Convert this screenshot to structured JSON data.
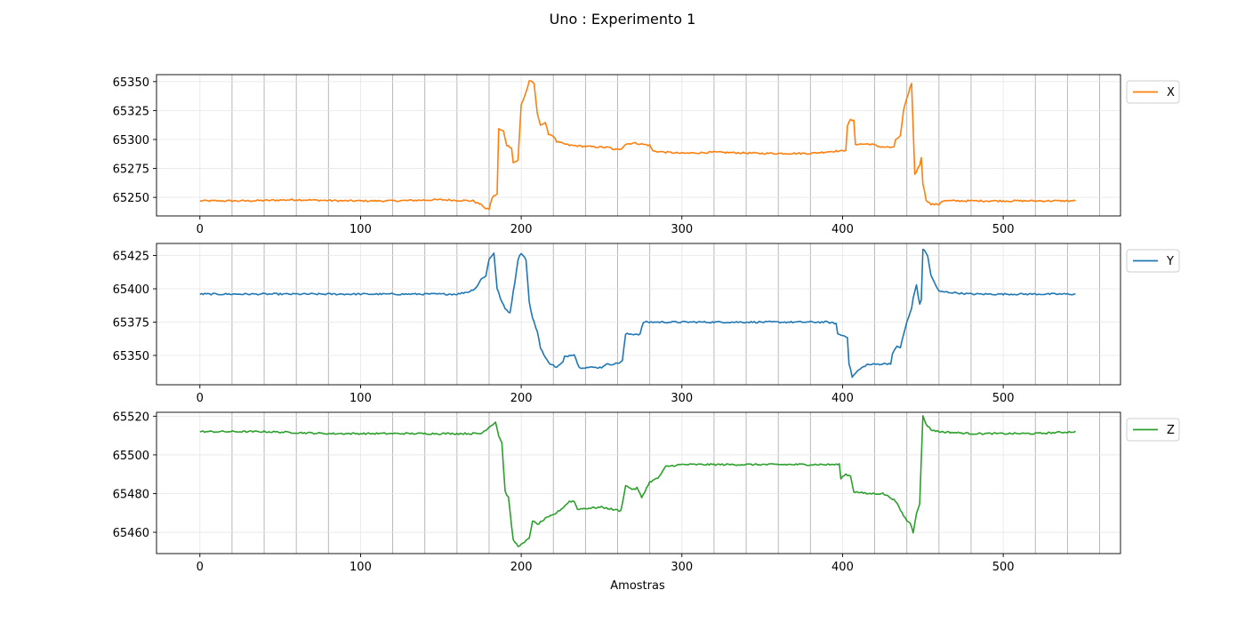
{
  "figure": {
    "title": "Uno : Experimento 1",
    "xlabel": "Amostras"
  },
  "chart_data": [
    {
      "type": "line",
      "series": [
        {
          "name": "X",
          "color": "#ff7f0e"
        }
      ],
      "xlim": [
        -27,
        573
      ],
      "ylim": [
        65234,
        65356
      ],
      "xticks": [
        0,
        100,
        200,
        300,
        400,
        500
      ],
      "yticks": [
        65250,
        65275,
        65300,
        65325,
        65350
      ],
      "grid": true,
      "legend": "right",
      "key_points": [
        [
          0,
          65247
        ],
        [
          30,
          65247
        ],
        [
          60,
          65248
        ],
        [
          90,
          65247
        ],
        [
          120,
          65247
        ],
        [
          150,
          65248
        ],
        [
          170,
          65247
        ],
        [
          176,
          65243
        ],
        [
          178,
          65240
        ],
        [
          180,
          65240
        ],
        [
          182,
          65250
        ],
        [
          185,
          65253
        ],
        [
          186,
          65309
        ],
        [
          189,
          65307
        ],
        [
          191,
          65295
        ],
        [
          194,
          65293
        ],
        [
          195,
          65280
        ],
        [
          198,
          65282
        ],
        [
          200,
          65330
        ],
        [
          202,
          65337
        ],
        [
          204,
          65345
        ],
        [
          205,
          65351
        ],
        [
          208,
          65348
        ],
        [
          210,
          65322
        ],
        [
          212,
          65313
        ],
        [
          215,
          65314
        ],
        [
          217,
          65305
        ],
        [
          220,
          65303
        ],
        [
          222,
          65298
        ],
        [
          230,
          65295
        ],
        [
          240,
          65294
        ],
        [
          255,
          65293
        ],
        [
          258,
          65291
        ],
        [
          262,
          65292
        ],
        [
          265,
          65296
        ],
        [
          270,
          65297
        ],
        [
          280,
          65295
        ],
        [
          282,
          65290
        ],
        [
          290,
          65289
        ],
        [
          300,
          65288
        ],
        [
          320,
          65289
        ],
        [
          350,
          65288
        ],
        [
          380,
          65288
        ],
        [
          395,
          65290
        ],
        [
          400,
          65290
        ],
        [
          402,
          65291
        ],
        [
          403,
          65312
        ],
        [
          405,
          65317
        ],
        [
          407,
          65316
        ],
        [
          408,
          65296
        ],
        [
          418,
          65296
        ],
        [
          422,
          65294
        ],
        [
          432,
          65293
        ],
        [
          433,
          65300
        ],
        [
          436,
          65303
        ],
        [
          438,
          65325
        ],
        [
          440,
          65335
        ],
        [
          442,
          65345
        ],
        [
          443,
          65348
        ],
        [
          445,
          65270
        ],
        [
          448,
          65278
        ],
        [
          449,
          65285
        ],
        [
          450,
          65262
        ],
        [
          452,
          65248
        ],
        [
          455,
          65244
        ],
        [
          460,
          65244
        ],
        [
          462,
          65247
        ],
        [
          480,
          65247
        ],
        [
          500,
          65247
        ],
        [
          520,
          65247
        ],
        [
          545,
          65247
        ]
      ]
    },
    {
      "type": "line",
      "series": [
        {
          "name": "Y",
          "color": "#1f77b4"
        }
      ],
      "xlim": [
        -27,
        573
      ],
      "ylim": [
        65328,
        65434
      ],
      "xticks": [
        0,
        100,
        200,
        300,
        400,
        500
      ],
      "yticks": [
        65350,
        65375,
        65400,
        65425
      ],
      "grid": true,
      "legend": "right",
      "key_points": [
        [
          0,
          65396
        ],
        [
          40,
          65396
        ],
        [
          80,
          65396
        ],
        [
          120,
          65396
        ],
        [
          160,
          65396
        ],
        [
          168,
          65398
        ],
        [
          172,
          65401
        ],
        [
          175,
          65407
        ],
        [
          178,
          65410
        ],
        [
          180,
          65422
        ],
        [
          183,
          65427
        ],
        [
          185,
          65400
        ],
        [
          188,
          65390
        ],
        [
          190,
          65385
        ],
        [
          193,
          65382
        ],
        [
          196,
          65405
        ],
        [
          198,
          65422
        ],
        [
          200,
          65427
        ],
        [
          203,
          65422
        ],
        [
          205,
          65390
        ],
        [
          207,
          65378
        ],
        [
          210,
          65368
        ],
        [
          212,
          65356
        ],
        [
          215,
          65348
        ],
        [
          218,
          65344
        ],
        [
          222,
          65341
        ],
        [
          226,
          65345
        ],
        [
          227,
          65349
        ],
        [
          233,
          65351
        ],
        [
          236,
          65341
        ],
        [
          250,
          65341
        ],
        [
          252,
          65343
        ],
        [
          260,
          65344
        ],
        [
          263,
          65346
        ],
        [
          265,
          65366
        ],
        [
          274,
          65366
        ],
        [
          276,
          65375
        ],
        [
          285,
          65375
        ],
        [
          300,
          65375
        ],
        [
          330,
          65375
        ],
        [
          360,
          65375
        ],
        [
          390,
          65375
        ],
        [
          396,
          65374
        ],
        [
          397,
          65366
        ],
        [
          400,
          65365
        ],
        [
          403,
          65364
        ],
        [
          404,
          65344
        ],
        [
          406,
          65334
        ],
        [
          410,
          65339
        ],
        [
          415,
          65343
        ],
        [
          430,
          65344
        ],
        [
          431,
          65351
        ],
        [
          434,
          65357
        ],
        [
          436,
          65356
        ],
        [
          440,
          65375
        ],
        [
          443,
          65385
        ],
        [
          444,
          65393
        ],
        [
          446,
          65403
        ],
        [
          448,
          65388
        ],
        [
          449,
          65392
        ],
        [
          450,
          65430
        ],
        [
          453,
          65425
        ],
        [
          455,
          65410
        ],
        [
          460,
          65398
        ],
        [
          480,
          65396
        ],
        [
          500,
          65396
        ],
        [
          520,
          65396
        ],
        [
          545,
          65396
        ]
      ]
    },
    {
      "type": "line",
      "series": [
        {
          "name": "Z",
          "color": "#2ca02c"
        }
      ],
      "xlim": [
        -27,
        573
      ],
      "ylim": [
        65449,
        65522
      ],
      "xticks": [
        0,
        100,
        200,
        300,
        400,
        500
      ],
      "yticks": [
        65460,
        65480,
        65500,
        65520
      ],
      "grid": true,
      "legend": "right",
      "key_points": [
        [
          0,
          65512
        ],
        [
          40,
          65512
        ],
        [
          80,
          65511
        ],
        [
          120,
          65511
        ],
        [
          160,
          65511
        ],
        [
          175,
          65511
        ],
        [
          181,
          65515
        ],
        [
          184,
          65517
        ],
        [
          186,
          65510
        ],
        [
          188,
          65506
        ],
        [
          190,
          65481
        ],
        [
          192,
          65478
        ],
        [
          195,
          65456
        ],
        [
          198,
          65453
        ],
        [
          201,
          65454
        ],
        [
          205,
          65457
        ],
        [
          207,
          65466
        ],
        [
          210,
          65464
        ],
        [
          215,
          65467
        ],
        [
          220,
          65469
        ],
        [
          225,
          65472
        ],
        [
          230,
          65476
        ],
        [
          233,
          65476
        ],
        [
          235,
          65472
        ],
        [
          250,
          65473
        ],
        [
          262,
          65471
        ],
        [
          265,
          65484
        ],
        [
          270,
          65482
        ],
        [
          272,
          65483
        ],
        [
          275,
          65478
        ],
        [
          280,
          65486
        ],
        [
          285,
          65488
        ],
        [
          287,
          65490
        ],
        [
          290,
          65494
        ],
        [
          300,
          65495
        ],
        [
          330,
          65495
        ],
        [
          360,
          65495
        ],
        [
          390,
          65495
        ],
        [
          398,
          65495
        ],
        [
          399,
          65488
        ],
        [
          402,
          65490
        ],
        [
          405,
          65489
        ],
        [
          407,
          65481
        ],
        [
          415,
          65480
        ],
        [
          425,
          65480
        ],
        [
          430,
          65478
        ],
        [
          433,
          65476
        ],
        [
          437,
          65470
        ],
        [
          440,
          65466
        ],
        [
          442,
          65465
        ],
        [
          444,
          65460
        ],
        [
          446,
          65470
        ],
        [
          448,
          65475
        ],
        [
          450,
          65520
        ],
        [
          452,
          65516
        ],
        [
          455,
          65513
        ],
        [
          460,
          65512
        ],
        [
          480,
          65511
        ],
        [
          500,
          65511
        ],
        [
          520,
          65511
        ],
        [
          545,
          65512
        ]
      ]
    }
  ]
}
